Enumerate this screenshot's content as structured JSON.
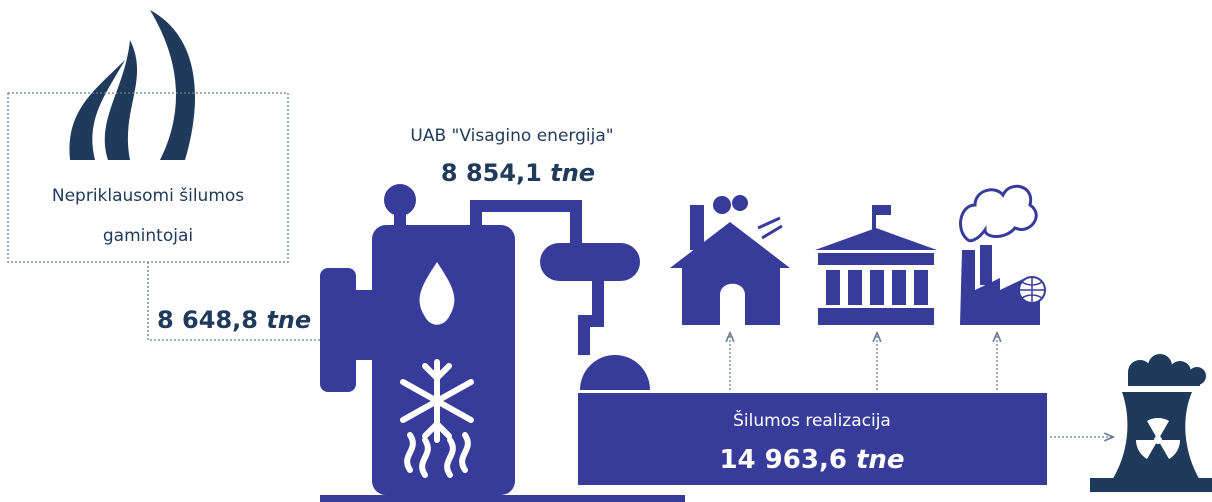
{
  "source": {
    "label_lines": [
      "Nepriklausomi šilumos",
      "gamintojai"
    ],
    "amount": "8 648,8",
    "unit": "tne"
  },
  "producer": {
    "name": "UAB \"Visagino energija\"",
    "amount": "8 854,1",
    "unit": "tne"
  },
  "sales": {
    "label": "Šilumos realizacija",
    "amount": "14 963,6",
    "unit": "tne"
  }
}
